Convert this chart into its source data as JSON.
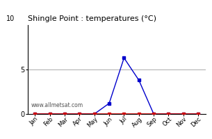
{
  "title": "Shingle Point : temperatures (°C)",
  "months": [
    "Jan",
    "Feb",
    "Mar",
    "Apr",
    "May",
    "Jun",
    "Jul",
    "Aug",
    "Sep",
    "Oct",
    "Nov",
    "Dec"
  ],
  "avg_temps": [
    0,
    0,
    0,
    0,
    0,
    1.2,
    6.3,
    3.8,
    0,
    0,
    0,
    0
  ],
  "min_temps": [
    0,
    0,
    0,
    0,
    0,
    0,
    0,
    0,
    0,
    0,
    0,
    0
  ],
  "line_color": "#0000cc",
  "min_color": "#cc0000",
  "grid_color": "#aaaaaa",
  "ylim": [
    0,
    10
  ],
  "yticks": [
    0,
    5
  ],
  "watermark": "www.allmetsat.com",
  "bg_color": "#ffffff"
}
